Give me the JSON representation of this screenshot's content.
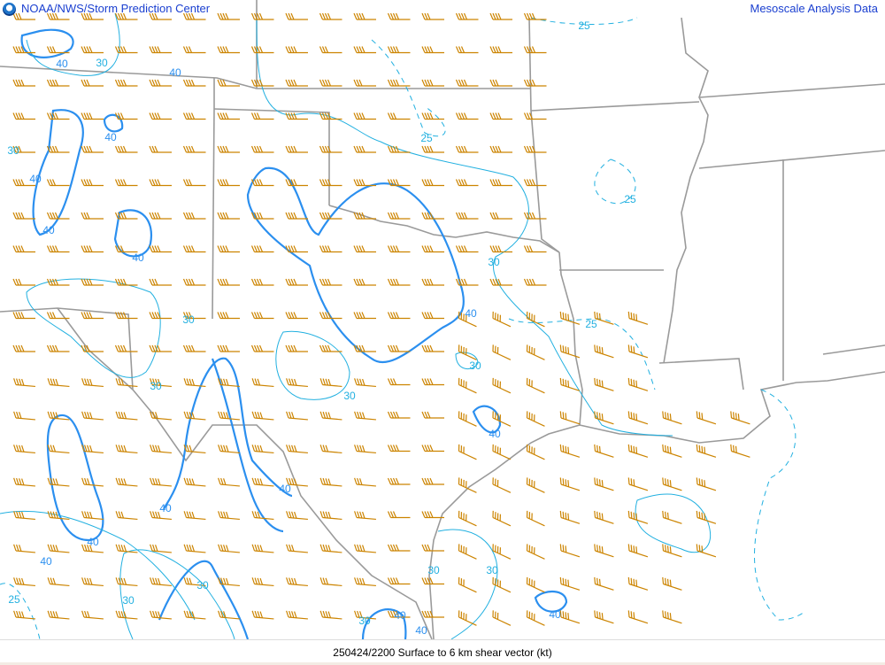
{
  "header": {
    "left_title": "NOAA/NWS/Storm Prediction Center",
    "right_title": "Mesoscale Analysis Data",
    "logo": "noaa-logo"
  },
  "footer": {
    "caption": "250424/2200 Surface to 6 km shear vector (kt)"
  },
  "map": {
    "field": "Surface to 6 km shear vector",
    "units": "kt",
    "colors": {
      "barbs": "#cc8400",
      "contour_40": "#2b8fef",
      "contour_30": "#22b0e0",
      "contour_25": "#22b0e0",
      "borders": "#9a9a9a",
      "header_text": "#1a3fd0"
    },
    "contour_levels": [
      25,
      30,
      40
    ],
    "contour_labels": [
      "40",
      "30",
      "40",
      "40",
      "30",
      "40",
      "40",
      "25",
      "25",
      "25",
      "30",
      "30",
      "40",
      "30",
      "30",
      "30",
      "40",
      "40",
      "40",
      "40",
      "40",
      "30",
      "30",
      "30",
      "30",
      "25",
      "40",
      "30",
      "40",
      "40",
      "40",
      "25"
    ]
  }
}
